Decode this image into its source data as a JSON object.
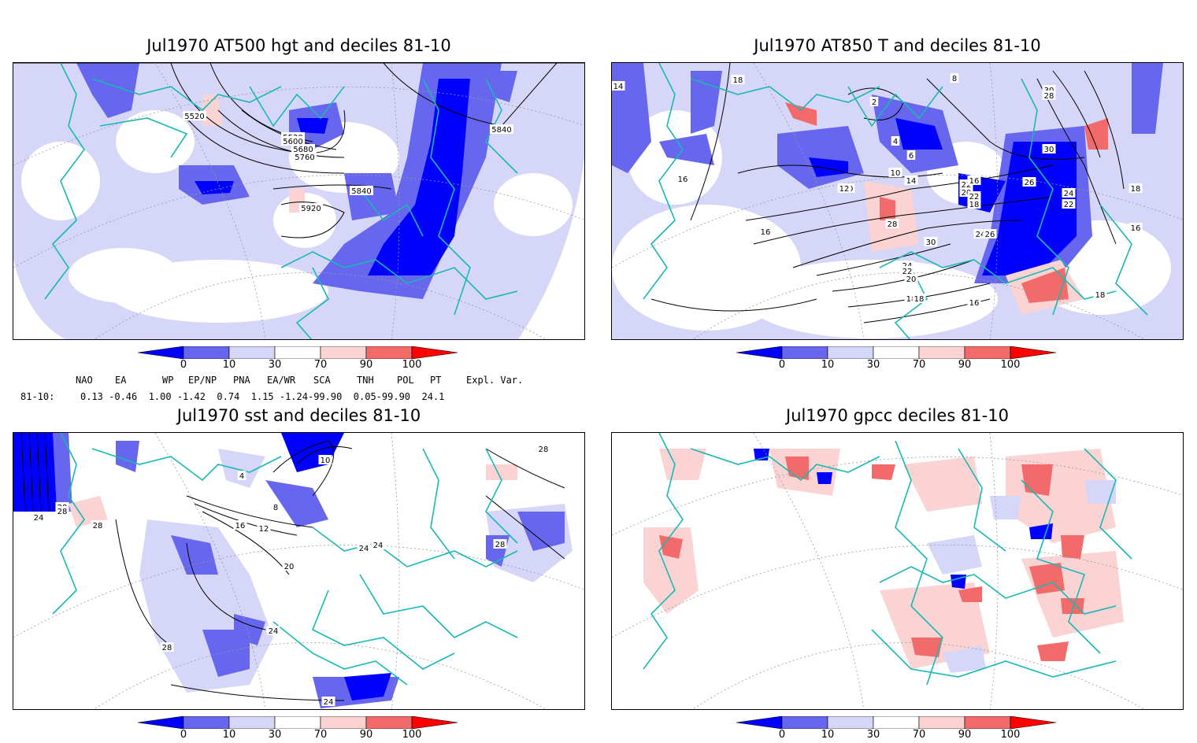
{
  "panels": [
    {
      "id": "p1",
      "title": "Jul1970 AT500 hgt and deciles 81-10",
      "contour_labels": [
        "5520",
        "5520",
        "5600",
        "5680",
        "5760",
        "5840",
        "5920",
        "5840"
      ]
    },
    {
      "id": "p2",
      "title": "Jul1970 AT850 T and deciles 81-10",
      "contour_labels": [
        "14",
        "18",
        "22",
        "20",
        "20",
        "18",
        "16",
        "16",
        "12",
        "10",
        "14",
        "16",
        "18",
        "22",
        "24",
        "26",
        "28",
        "30",
        "24",
        "22",
        "26",
        "24",
        "22",
        "20",
        "18",
        "16",
        "18",
        "30",
        "28",
        "30",
        "2",
        "4",
        "6",
        "8",
        "18",
        "16"
      ]
    },
    {
      "id": "p3",
      "title": "Jul1970 sst and deciles 81-10",
      "contour_labels": [
        "28",
        "28",
        "24",
        "28",
        "28",
        "16",
        "12",
        "8",
        "4",
        "10",
        "20",
        "24",
        "24",
        "24",
        "28",
        "24",
        "28"
      ]
    },
    {
      "id": "p4",
      "title": "Jul1970 gpcc deciles 81-10",
      "contour_labels": []
    }
  ],
  "colorbar": {
    "ticks": [
      "0",
      "10",
      "30",
      "70",
      "90",
      "100"
    ],
    "colors": [
      "#0000ff",
      "#6666ee",
      "#d6d6f8",
      "#ffffff",
      "#fbd3d3",
      "#f26a6a",
      "#ff0000"
    ]
  },
  "indices": {
    "headers": [
      "NAO",
      "EA",
      "WP",
      "EP/NP",
      "PNA",
      "EA/WR",
      "SCA",
      "TNH",
      "POL",
      "PT",
      "Expl. Var."
    ],
    "row_label": "81-10:",
    "values": "0.13 -0.46  1.00 -1.42  0.74  1.15 -1.24-99.90  0.05-99.90  24.1"
  }
}
